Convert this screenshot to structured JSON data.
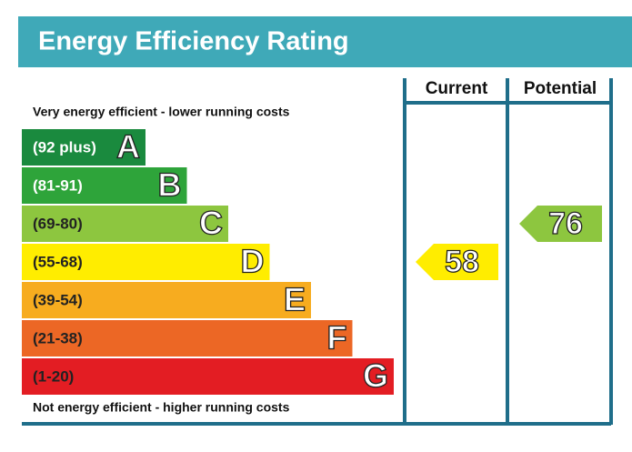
{
  "title": "Energy Efficiency Rating",
  "columns": [
    "Current",
    "Potential"
  ],
  "top_note": "Very energy efficient - lower running costs",
  "bottom_note": "Not energy efficient - higher running costs",
  "chart_data": {
    "type": "epc",
    "bands": [
      {
        "range": "(92 plus)",
        "letter": "A",
        "color": "#1a8a3e"
      },
      {
        "range": "(81-91)",
        "letter": "B",
        "color": "#2ea43a"
      },
      {
        "range": "(69-80)",
        "letter": "C",
        "color": "#8dc63f"
      },
      {
        "range": "(55-68)",
        "letter": "D",
        "color": "#ffed00"
      },
      {
        "range": "(39-54)",
        "letter": "E",
        "color": "#f7ac1f"
      },
      {
        "range": "(21-38)",
        "letter": "F",
        "color": "#ec6725"
      },
      {
        "range": "(1-20)",
        "letter": "G",
        "color": "#e31d23"
      }
    ],
    "current": 58,
    "potential": 76
  }
}
